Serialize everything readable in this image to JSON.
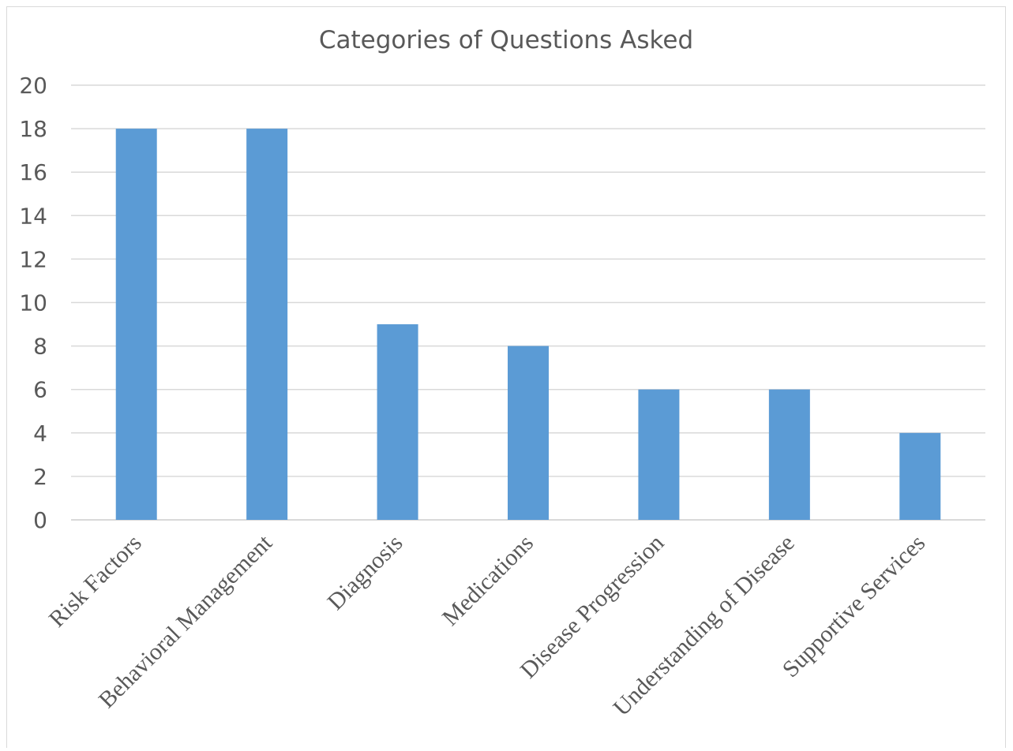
{
  "chart_data": {
    "type": "bar",
    "title": "Categories of Questions Asked",
    "categories": [
      "Risk Factors",
      "Behavioral Management",
      "Diagnosis",
      "Medications",
      "Disease Progression",
      "Understanding of Disease",
      "Supportive Services"
    ],
    "values": [
      18,
      18,
      9,
      8,
      6,
      6,
      4
    ],
    "ylim": [
      0,
      20
    ],
    "yticks": [
      0,
      2,
      4,
      6,
      8,
      10,
      12,
      14,
      16,
      18,
      20
    ],
    "xlabel": "",
    "ylabel": "",
    "grid": true,
    "legend": "none",
    "bar_color": "#5b9bd5"
  }
}
